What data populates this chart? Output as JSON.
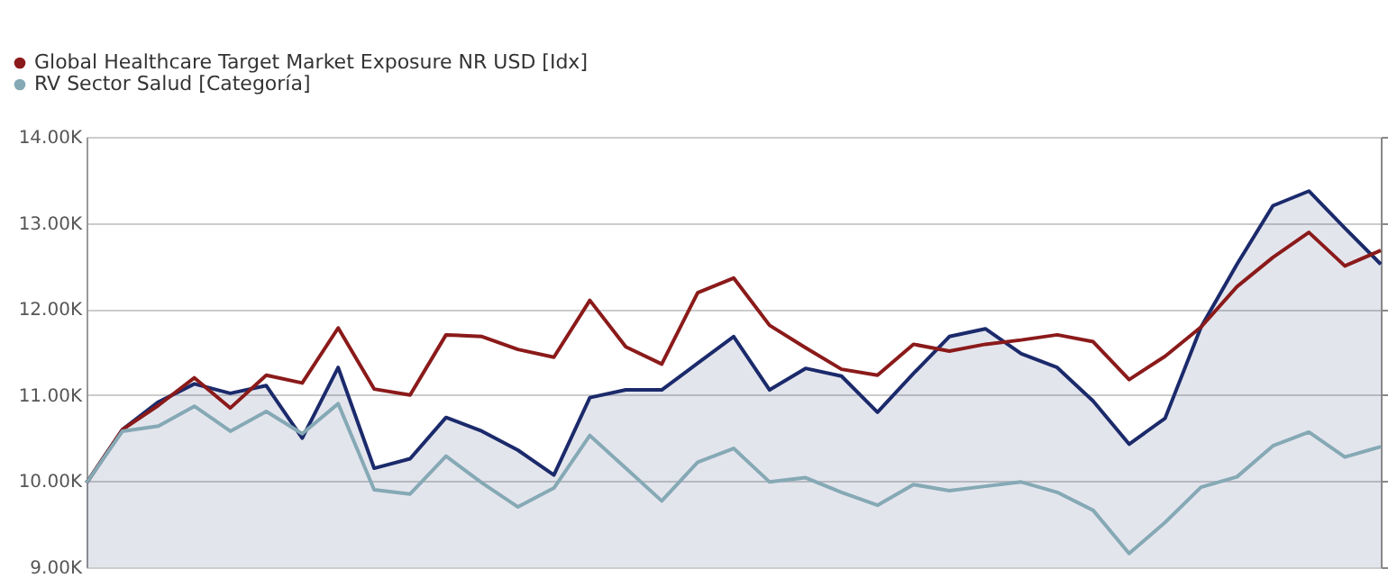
{
  "chart_data": {
    "type": "line",
    "categories": [
      null,
      null,
      null,
      null,
      null,
      null,
      null,
      null,
      null,
      null,
      null,
      null,
      null,
      null,
      null,
      null,
      null,
      null,
      null,
      null,
      null,
      null,
      null,
      null,
      null,
      null,
      null,
      null,
      null,
      null,
      null,
      null,
      null,
      null,
      null,
      null,
      null
    ],
    "series": [
      {
        "type": "area",
        "color": "#1b2a6b",
        "values": [
          9980,
          10600,
          10920,
          11130,
          11020,
          11110,
          10500,
          11320,
          10150,
          10260,
          10740,
          10580,
          10360,
          10070,
          10970,
          11060,
          11060,
          11370,
          11680,
          11060,
          11310,
          11220,
          10800,
          11250,
          11680,
          11770,
          11480,
          11320,
          10930,
          10430,
          10730,
          11790,
          12520,
          13200,
          13370,
          12940,
          12520
        ]
      },
      {
        "name": "Global Healthcare Target Market Exposure NR USD [Idx]",
        "color": "#8b1a1a",
        "values": [
          9980,
          10600,
          10880,
          11200,
          10850,
          11230,
          11140,
          11780,
          11070,
          11000,
          11700,
          11680,
          11530,
          11440,
          12100,
          11560,
          11360,
          12190,
          12360,
          11810,
          11550,
          11300,
          11230,
          11590,
          11510,
          11590,
          11640,
          11700,
          11620,
          11180,
          11450,
          11790,
          12260,
          12600,
          12890,
          12500,
          12680
        ]
      },
      {
        "name": "RV Sector Salud [Categoría]",
        "color": "#85a9b5",
        "values": [
          9980,
          10580,
          10640,
          10870,
          10580,
          10810,
          10550,
          10900,
          9900,
          9850,
          10290,
          9980,
          9700,
          9920,
          10530,
          10150,
          9770,
          10220,
          10380,
          9990,
          10040,
          9870,
          9720,
          9960,
          9890,
          9940,
          9990,
          9870,
          9660,
          9160,
          9520,
          9930,
          10050,
          10410,
          10570,
          10280,
          10400
        ]
      }
    ],
    "ylim": [
      9000,
      14000
    ],
    "yticks": [
      {
        "value": 9000,
        "label": "9.00K"
      },
      {
        "value": 10000,
        "label": "10.00K"
      },
      {
        "value": 11000,
        "label": "11.00K"
      },
      {
        "value": 12000,
        "label": "12.00K"
      },
      {
        "value": 13000,
        "label": "13.00K"
      },
      {
        "value": 14000,
        "label": "14.00K"
      }
    ],
    "grid": true,
    "legend": "top left",
    "tick_labels": "y"
  }
}
